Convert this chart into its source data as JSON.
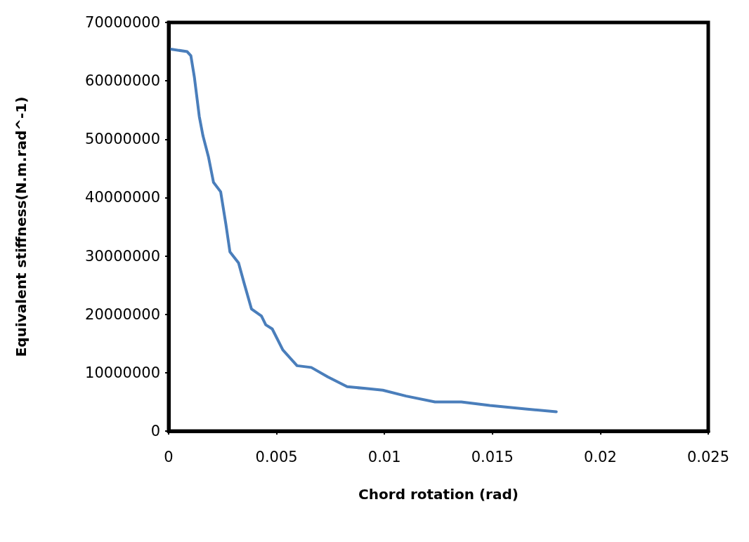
{
  "chart_data": {
    "type": "line",
    "xlabel": "Chord rotation (rad)",
    "ylabel": "Equivalent stiffness(N.m.rad^-1)",
    "xlim": [
      0,
      0.025
    ],
    "xticks": [
      0,
      0.005,
      0.01,
      0.015,
      0.02,
      0.025
    ],
    "ylim": [
      0,
      70000000
    ],
    "yticks": [
      0,
      10000000,
      20000000,
      30000000,
      40000000,
      50000000,
      60000000,
      70000000
    ],
    "grid": false,
    "marker": "none",
    "line_style": "solid",
    "series": [
      {
        "color": "#4a7ebb",
        "x": [
          0,
          0.00086,
          0.00103,
          0.00119,
          0.00142,
          0.00159,
          0.00185,
          0.00208,
          0.00241,
          0.00265,
          0.00284,
          0.00324,
          0.0035,
          0.00384,
          0.0043,
          0.0045,
          0.0048,
          0.00529,
          0.00595,
          0.00661,
          0.00737,
          0.00827,
          0.00913,
          0.00992,
          0.011,
          0.01234,
          0.01356,
          0.01488,
          0.01653,
          0.01796
        ],
        "values": [
          65500000,
          65000000,
          64300000,
          60700000,
          53900000,
          50600000,
          46900000,
          42600000,
          41000000,
          35500000,
          30700000,
          28800000,
          25300000,
          20900000,
          19700000,
          18200000,
          17500000,
          13900000,
          11200000,
          10900000,
          9300000,
          7600000,
          7300000,
          7000000,
          6000000,
          5000000,
          5000000,
          4400000,
          3800000,
          3300000
        ]
      }
    ]
  }
}
